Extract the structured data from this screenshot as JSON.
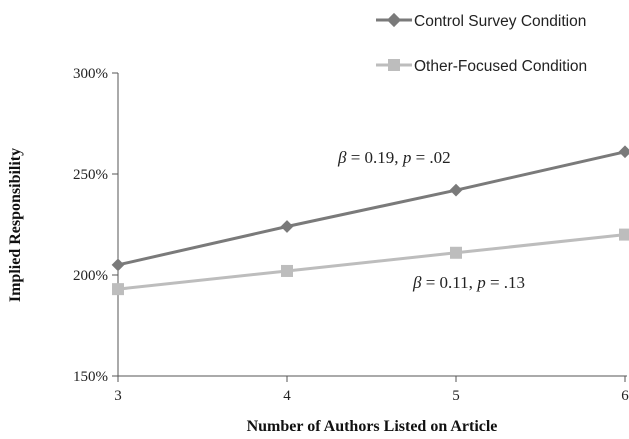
{
  "chart_data": {
    "type": "line",
    "x": [
      3,
      4,
      5,
      6
    ],
    "xlabel": "Number of Authors Listed on Article",
    "ylabel": "Implied Responsibility",
    "ylim": [
      1.5,
      3.0
    ],
    "yticks": [
      1.5,
      2.0,
      2.5,
      3.0
    ],
    "ytick_labels": [
      "150%",
      "200%",
      "250%",
      "300%"
    ],
    "xtick_labels": [
      "3",
      "4",
      "5",
      "6"
    ],
    "grid": false,
    "legend_position": "top-right",
    "series": [
      {
        "name": "Control Survey Condition",
        "values": [
          2.05,
          2.24,
          2.42,
          2.61
        ],
        "color": "#7a7a7a",
        "marker": "diamond"
      },
      {
        "name": "Other-Focused Condition",
        "values": [
          1.93,
          2.02,
          2.11,
          2.2
        ],
        "color": "#bdbdbd",
        "marker": "square"
      }
    ],
    "annotations": [
      {
        "beta_symbol": "β",
        "beta_value": " = 0.19, ",
        "p_symbol": "p",
        "p_value": " = .02"
      },
      {
        "beta_symbol": "β",
        "beta_value": " = 0.11, ",
        "p_symbol": "p",
        "p_value": " = .13"
      }
    ]
  }
}
